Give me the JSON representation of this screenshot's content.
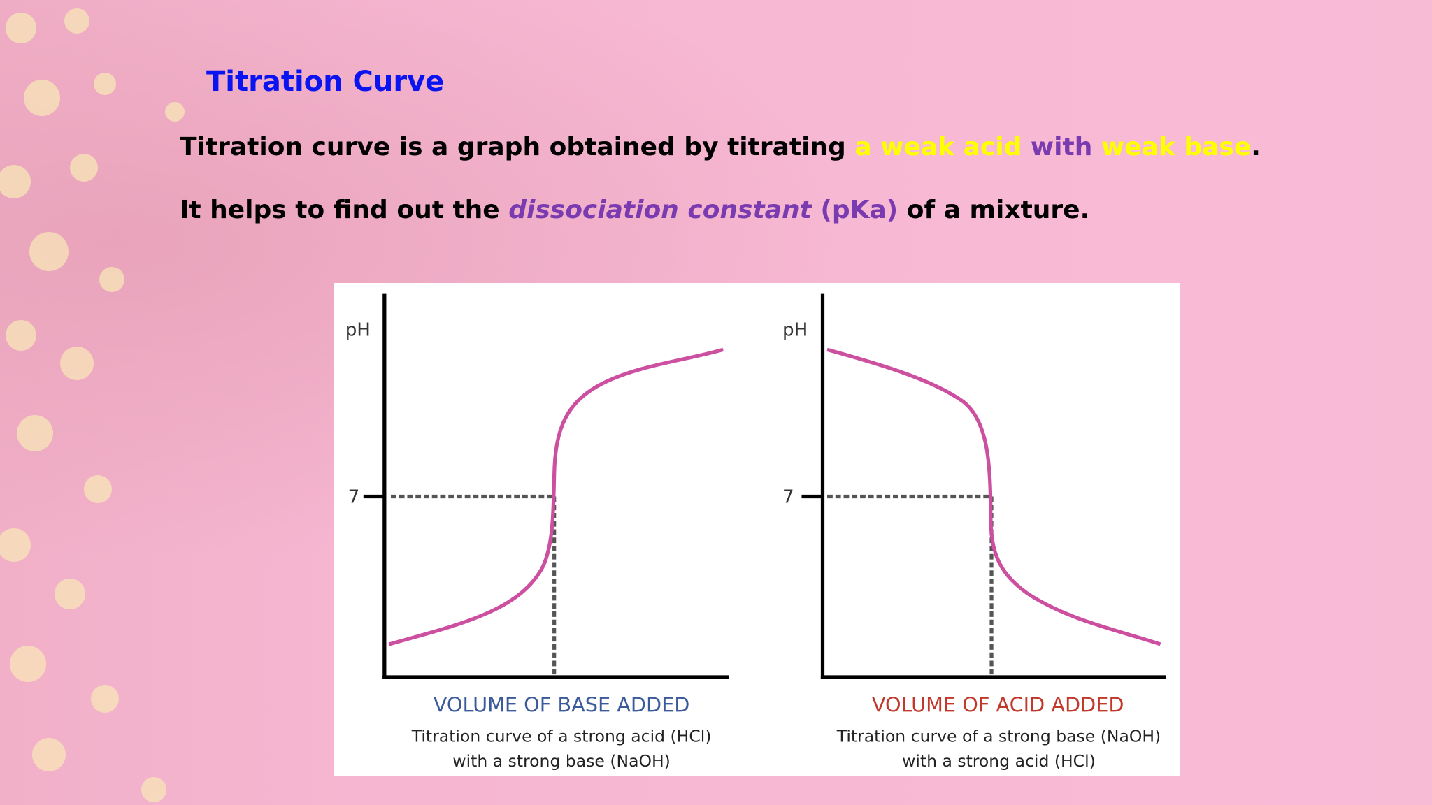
{
  "title": "Titration Curve",
  "paragraphs": [
    [
      "Titration curve is a graph obtained by titrating ",
      "a weak acid",
      " with ",
      "weak base",
      "."
    ],
    [
      "It helps to find out the ",
      "dissociation constant",
      " (pKa)",
      " of a mixture."
    ]
  ],
  "figures": [
    {
      "y_label": "pH",
      "tick": "7",
      "x_label": "VOLUME OF BASE ADDED",
      "caption": [
        "Titration curve of a strong acid (HCl)",
        "with a strong base (NaOH)"
      ]
    },
    {
      "y_label": "pH",
      "tick": "7",
      "x_label": "VOLUME OF ACID ADDED",
      "caption": [
        "Titration curve of a strong base (NaOH)",
        "with a strong acid (HCl)"
      ]
    }
  ]
}
